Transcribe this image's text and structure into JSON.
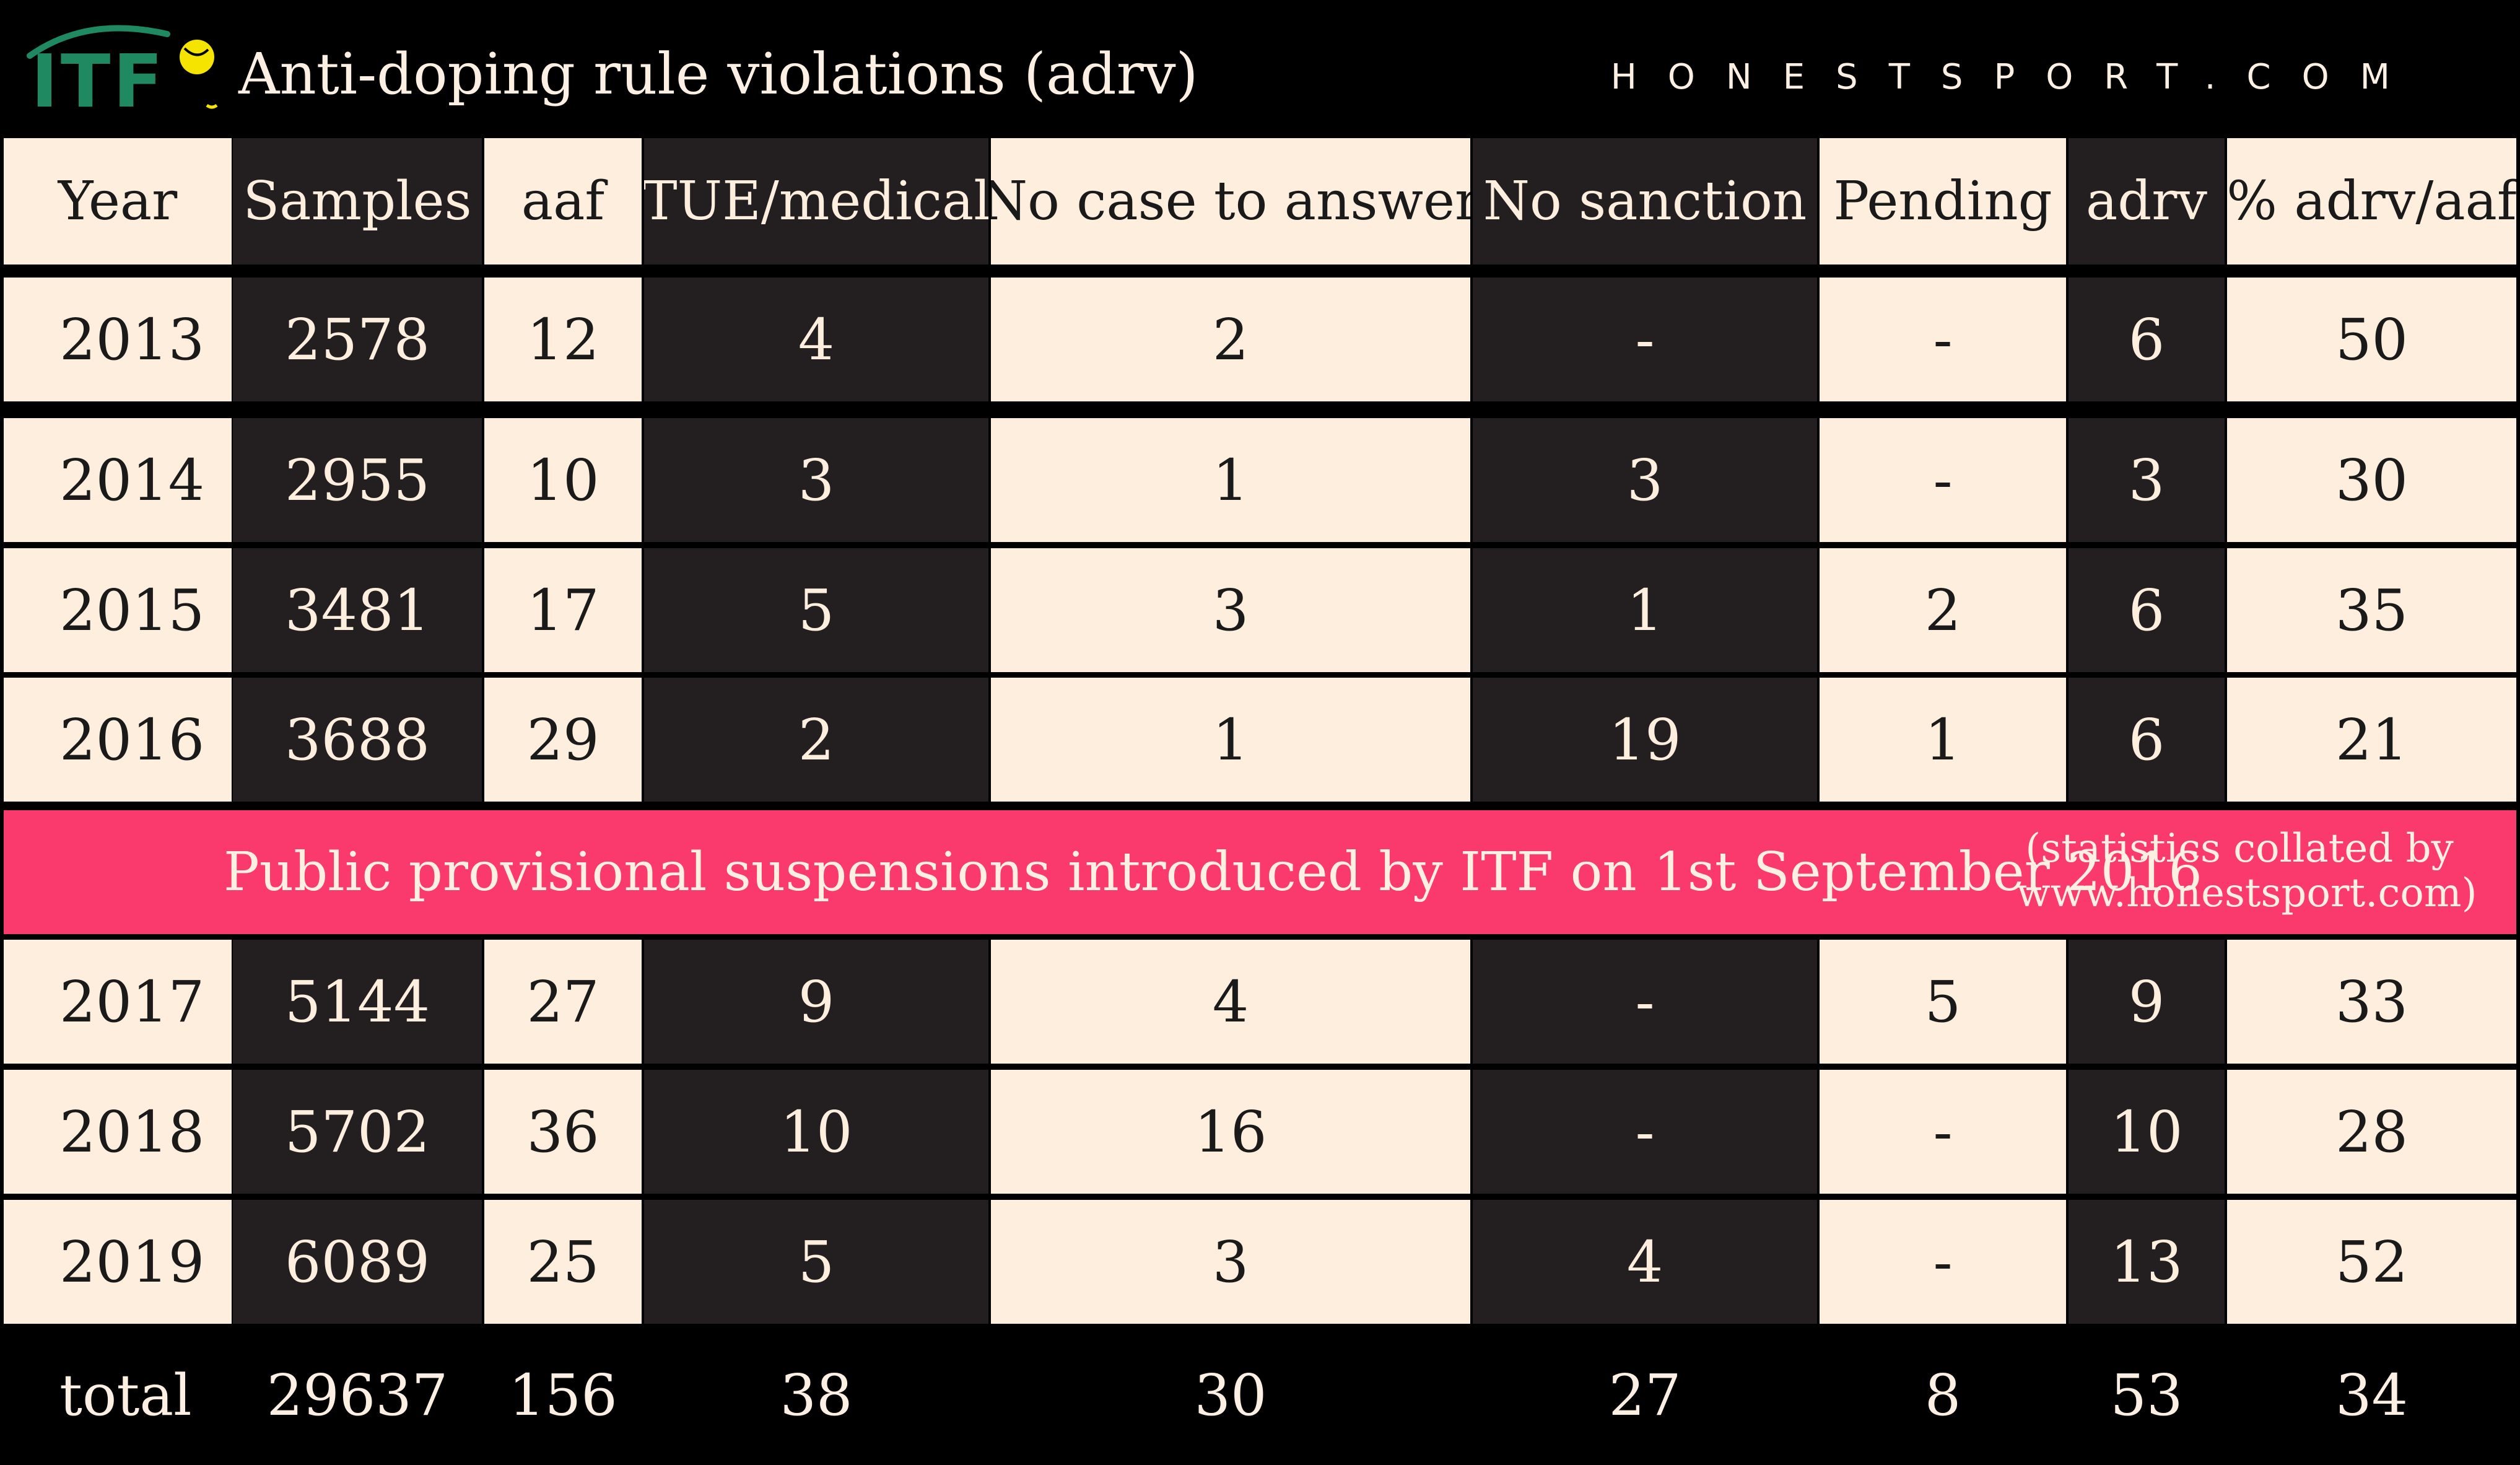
{
  "header": {
    "logo_text": "ITF",
    "title": "Anti-doping rule violations (adrv)",
    "site": "HONESTSPORT.COM"
  },
  "colors": {
    "background": "#000000",
    "cream": "#fdeedd",
    "dark_cell": "#231f20",
    "notice_pink": "#fa3a6c",
    "logo_green": "#1f8a62",
    "logo_ball": "#f5e400"
  },
  "notice": {
    "text": "Public provisional suspensions introduced by ITF on 1st September 2016",
    "note": "(statistics collated by www.honestsport.com)"
  },
  "chart_data": {
    "type": "table",
    "title": "Anti-doping rule violations (adrv)",
    "columns": [
      "Year",
      "Samples",
      "aaf",
      "TUE/medical",
      "No case to answer",
      "No sanction",
      "Pending",
      "adrv",
      "% adrv/aaf"
    ],
    "rows": [
      [
        "2013",
        "2578",
        "12",
        "4",
        "2",
        "-",
        "-",
        "6",
        "50"
      ],
      [
        "2014",
        "2955",
        "10",
        "3",
        "1",
        "3",
        "-",
        "3",
        "30"
      ],
      [
        "2015",
        "3481",
        "17",
        "5",
        "3",
        "1",
        "2",
        "6",
        "35"
      ],
      [
        "2016",
        "3688",
        "29",
        "2",
        "1",
        "19",
        "1",
        "6",
        "21"
      ],
      [
        "2017",
        "5144",
        "27",
        "9",
        "4",
        "-",
        "5",
        "9",
        "33"
      ],
      [
        "2018",
        "5702",
        "36",
        "10",
        "16",
        "-",
        "-",
        "10",
        "28"
      ],
      [
        "2019",
        "6089",
        "25",
        "5",
        "3",
        "4",
        "-",
        "13",
        "52"
      ]
    ],
    "total": [
      "total",
      "29637",
      "156",
      "38",
      "30",
      "27",
      "8",
      "53",
      "34"
    ]
  }
}
